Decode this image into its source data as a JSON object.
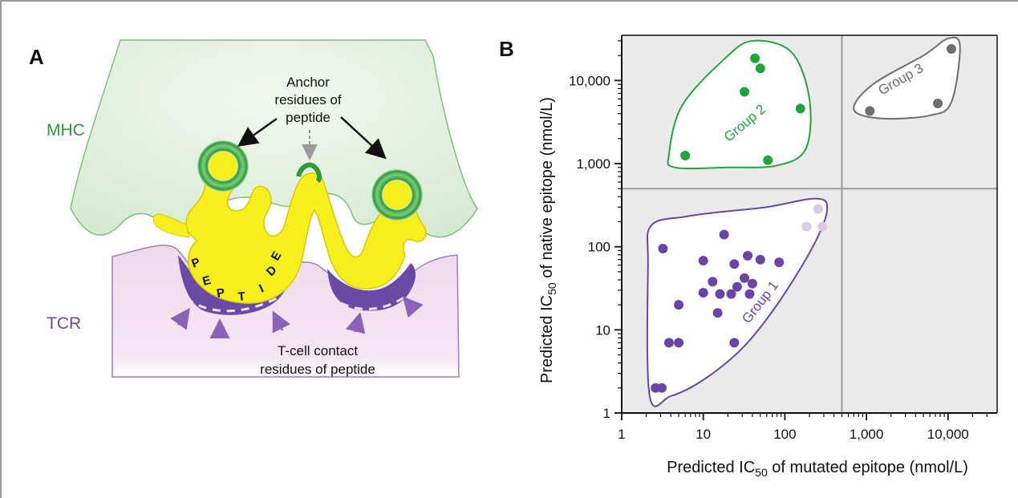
{
  "panel_a": {
    "label": "A",
    "mhc_label": "MHC",
    "tcr_label": "TCR",
    "anchor_line1": "Anchor",
    "anchor_line2": "residues of",
    "anchor_line3": "peptide",
    "contact_line1": "T-cell contact",
    "contact_line2": "residues of peptide",
    "peptide_letters": [
      "P",
      "E",
      "P",
      "T",
      "I",
      "D",
      "E"
    ],
    "colors": {
      "mhc": "#dcefd9",
      "tcr": "#f3dff0",
      "peptide": "#f7ee1c",
      "anchor_green": "#3ea94a",
      "tcr_purple": "#6b4aa6"
    }
  },
  "panel_b": {
    "label": "B",
    "colors": {
      "group1": "#6a45a6",
      "group1_light": "#dcc9e6",
      "group2": "#1fa63a",
      "group3": "#6e6e6e",
      "plot_bg": "#e9ebeb"
    },
    "chart_data": {
      "type": "scatter",
      "xlabel_pre": "Predicted IC",
      "xlabel_sub": "50",
      "xlabel_post": " of mutated epitope (nmol/L)",
      "ylabel_pre": "Predicted IC",
      "ylabel_sub": "50",
      "ylabel_post": " of native epitope (nmol/L)",
      "x_scale": "log",
      "y_scale": "log",
      "xlim": [
        1,
        40000
      ],
      "ylim": [
        1,
        35000
      ],
      "x_ticks": [
        1,
        10,
        100,
        1000,
        10000
      ],
      "x_tick_labels": [
        "1",
        "10",
        "100",
        "1,000",
        "10,000"
      ],
      "y_ticks": [
        1,
        10,
        100,
        1000,
        10000
      ],
      "y_tick_labels": [
        "1",
        "10",
        "100",
        "1,000",
        "10,000"
      ],
      "threshold_x": 500,
      "threshold_y": 500,
      "series": [
        {
          "name": "Group 1",
          "label_rotation": -52,
          "label_anchor": [
            55,
            20
          ],
          "points": [
            [
              3.2,
              95
            ],
            [
              18,
              140
            ],
            [
              10,
              68
            ],
            [
              24,
              62
            ],
            [
              35,
              78
            ],
            [
              50,
              70
            ],
            [
              85,
              65
            ],
            [
              13,
              38
            ],
            [
              32,
              42
            ],
            [
              10,
              28
            ],
            [
              16,
              27
            ],
            [
              22,
              27
            ],
            [
              26,
              33
            ],
            [
              40,
              36
            ],
            [
              37,
              27
            ],
            [
              5,
              20
            ],
            [
              15,
              16
            ],
            [
              3.8,
              7
            ],
            [
              5,
              7
            ],
            [
              24,
              7
            ],
            [
              2.6,
              2
            ],
            [
              3.1,
              2
            ]
          ],
          "outline": [
            [
              2.1,
              60
            ],
            [
              2.3,
              180
            ],
            [
              6,
              230
            ],
            [
              15,
              260
            ],
            [
              60,
              300
            ],
            [
              240,
              380
            ],
            [
              330,
              280
            ],
            [
              220,
              100
            ],
            [
              80,
              20
            ],
            [
              30,
              6
            ],
            [
              10,
              2.5
            ],
            [
              4,
              1.6
            ],
            [
              2.2,
              1.6
            ]
          ]
        },
        {
          "name": "Group 1 (light)",
          "points": [
            [
              185,
              175
            ],
            [
              255,
              285
            ],
            [
              290,
              175
            ]
          ]
        },
        {
          "name": "Group 2",
          "label_rotation": -40,
          "label_anchor": [
            35,
            2800
          ],
          "points": [
            [
              6,
              1250
            ],
            [
              32,
              7300
            ],
            [
              43,
              18500
            ],
            [
              50,
              14000
            ],
            [
              155,
              4600
            ],
            [
              62,
              1100
            ]
          ],
          "outline": [
            [
              3.8,
              1300
            ],
            [
              5.5,
              5000
            ],
            [
              18,
              18000
            ],
            [
              40,
              30000
            ],
            [
              120,
              22000
            ],
            [
              200,
              6000
            ],
            [
              180,
              1500
            ],
            [
              80,
              950
            ],
            [
              20,
              900
            ],
            [
              4.5,
              900
            ]
          ]
        },
        {
          "name": "Group 3",
          "label_rotation": -30,
          "label_anchor": [
            2800,
            9300
          ],
          "points": [
            [
              1100,
              4300
            ],
            [
              7500,
              5300
            ],
            [
              11000,
              24000
            ]
          ],
          "outline": [
            [
              700,
              4500
            ],
            [
              1200,
              9000
            ],
            [
              5000,
              20000
            ],
            [
              10000,
              32000
            ],
            [
              14000,
              26000
            ],
            [
              11000,
              5500
            ],
            [
              6000,
              3800
            ],
            [
              1500,
              3500
            ]
          ]
        }
      ]
    }
  }
}
